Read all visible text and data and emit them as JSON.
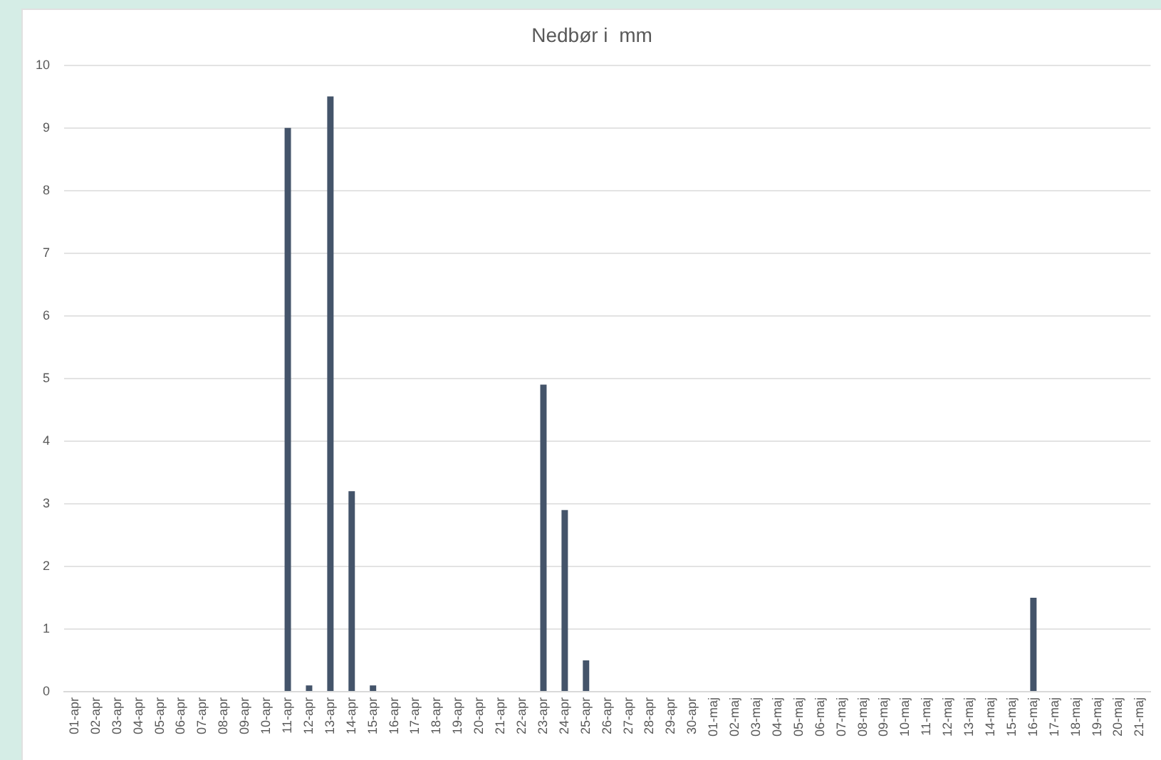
{
  "chart_data": {
    "type": "bar",
    "title": "Nedbør i  mm",
    "categories": [
      "01-apr",
      "02-apr",
      "03-apr",
      "04-apr",
      "05-apr",
      "06-apr",
      "07-apr",
      "08-apr",
      "09-apr",
      "10-apr",
      "11-apr",
      "12-apr",
      "13-apr",
      "14-apr",
      "15-apr",
      "16-apr",
      "17-apr",
      "18-apr",
      "19-apr",
      "20-apr",
      "21-apr",
      "22-apr",
      "23-apr",
      "24-apr",
      "25-apr",
      "26-apr",
      "27-apr",
      "28-apr",
      "29-apr",
      "30-apr",
      "01-maj",
      "02-maj",
      "03-maj",
      "04-maj",
      "05-maj",
      "06-maj",
      "07-maj",
      "08-maj",
      "09-maj",
      "10-maj",
      "11-maj",
      "12-maj",
      "13-maj",
      "14-maj",
      "15-maj",
      "16-maj",
      "17-maj",
      "18-maj",
      "19-maj",
      "20-maj",
      "21-maj"
    ],
    "series": [
      {
        "color": "#44546a",
        "values": [
          0,
          0,
          0,
          0,
          0,
          0,
          0,
          0,
          0,
          0,
          9,
          0.1,
          9.5,
          3.2,
          0.1,
          0,
          0,
          0,
          0,
          0,
          0,
          0,
          4.9,
          2.9,
          0.5,
          0,
          0,
          0,
          0,
          0,
          0,
          0,
          0,
          0,
          0,
          0,
          0,
          0,
          0,
          0,
          0,
          0,
          0,
          0,
          0,
          1.5,
          0,
          0,
          0,
          0,
          0
        ]
      }
    ],
    "ylim": [
      0,
      10
    ],
    "yticks": [
      0,
      1,
      2,
      3,
      4,
      5,
      6,
      7,
      8,
      9,
      10
    ],
    "grid": "y",
    "legend": false
  }
}
